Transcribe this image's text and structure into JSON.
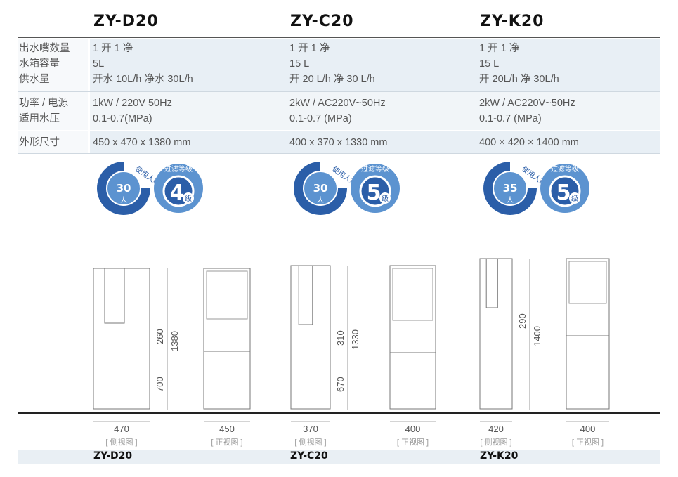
{
  "models": [
    "ZY-D20",
    "ZY-C20",
    "ZY-K20"
  ],
  "spec_labels": [
    "出水嘴数量",
    "水箱容量",
    "供水量",
    "功率 / 电源",
    "适用水压",
    "外形尺寸"
  ],
  "specs": [
    [
      "1 开 1 净",
      "5L",
      "开水 10L/h    净水 30L/h",
      "1kW / 220V  50Hz",
      "0.1-0.7(MPa)",
      "450 x 470 x 1380 mm"
    ],
    [
      "1 开 1 净",
      "15 L",
      "开 20 L/h    净 30 L/h",
      "2kW / AC220V~50Hz",
      "0.1-0.7 (MPa)",
      "400 x 370 x 1330 mm"
    ],
    [
      "1 开 1 净",
      "15 L",
      "开 20L/h    净 30L/h",
      "2kW / AC220V~50Hz",
      "0.1-0.7 (MPa)",
      "400 × 420 × 1400 mm"
    ]
  ],
  "badges": [
    {
      "users": "30",
      "users_unit": "人",
      "users_label": "使用人数",
      "filter_level": "4",
      "filter_unit": "级",
      "filter_label": "过滤等级"
    },
    {
      "users": "30",
      "users_unit": "人",
      "users_label": "使用人数",
      "filter_level": "5",
      "filter_unit": "级",
      "filter_label": "过滤等级"
    },
    {
      "users": "35",
      "users_unit": "人",
      "users_label": "使用人数",
      "filter_level": "5",
      "filter_unit": "级",
      "filter_label": "过滤等级"
    }
  ],
  "drawings": [
    {
      "side_width": "470",
      "front_width": "450",
      "height_total": "1380",
      "upper": "260",
      "lower": "700"
    },
    {
      "side_width": "370",
      "front_width": "400",
      "height_total": "1330",
      "upper": "310",
      "lower": "670"
    },
    {
      "side_width": "420",
      "front_width": "400",
      "height_total": "1400",
      "upper": "290"
    }
  ],
  "view_labels": {
    "side": "[ 侧视图 ]",
    "front": "[ 正视图 ]"
  },
  "colors": {
    "badge_dark": "#2b5ea8",
    "badge_light": "#5c93d0",
    "row_bg": "#e8eff5"
  }
}
